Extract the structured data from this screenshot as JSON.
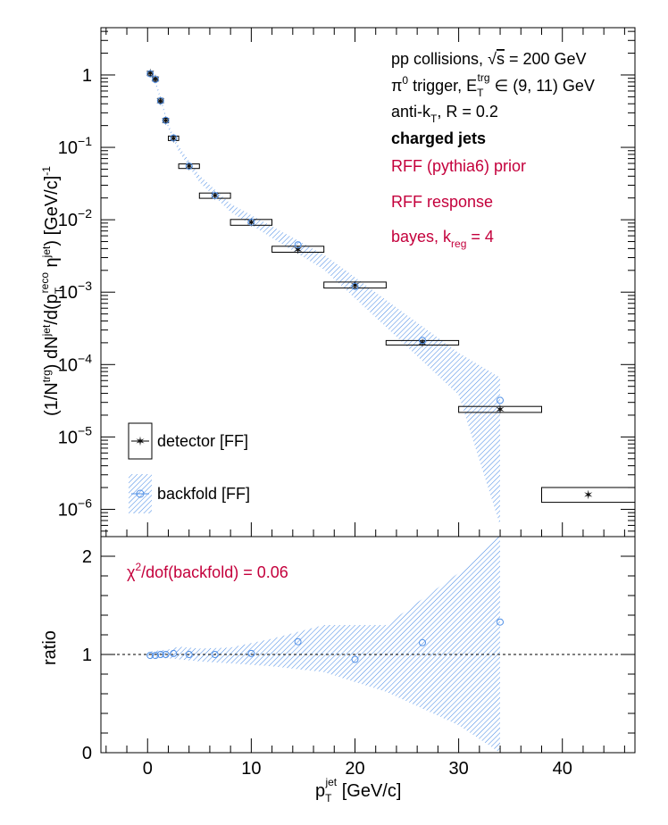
{
  "chart_data": [
    {
      "type": "scatter",
      "panel": "main",
      "yscale": "log",
      "xlim": [
        -4.5,
        47
      ],
      "ylim": [
        4.2e-07,
        4.5
      ],
      "ylabel": {
        "a": "(1/N",
        "b": "trg",
        "c": ") dN",
        "d": "jet",
        "e": "/d(p",
        "f": "T",
        "g": "reco",
        "h": " η",
        "i": "jet",
        "j": ") [GeV/c]",
        "k": "-1"
      },
      "yticks": [
        {
          "v": 1,
          "label": "1"
        },
        {
          "v": 0.1,
          "label": "10",
          "exp": "−1"
        },
        {
          "v": 0.01,
          "label": "10",
          "exp": "−2"
        },
        {
          "v": 0.001,
          "label": "10",
          "exp": "−3"
        },
        {
          "v": 0.0001,
          "label": "10",
          "exp": "−4"
        },
        {
          "v": 1e-05,
          "label": "10",
          "exp": "−5"
        },
        {
          "v": 1e-06,
          "label": "10",
          "exp": "−6"
        }
      ],
      "series": [
        {
          "name": "detector [FF]",
          "points": [
            {
              "x": 0.25,
              "y": 1.05,
              "xlo": 0.0,
              "xhi": 0.5,
              "ylo": 1.01,
              "yhi": 1.09
            },
            {
              "x": 0.75,
              "y": 0.88,
              "xlo": 0.5,
              "xhi": 1.0,
              "ylo": 0.85,
              "yhi": 0.91
            },
            {
              "x": 1.25,
              "y": 0.44,
              "xlo": 1.0,
              "xhi": 1.5,
              "ylo": 0.43,
              "yhi": 0.455
            },
            {
              "x": 1.75,
              "y": 0.235,
              "xlo": 1.5,
              "xhi": 2.0,
              "ylo": 0.228,
              "yhi": 0.242
            },
            {
              "x": 2.5,
              "y": 0.133,
              "xlo": 2.0,
              "xhi": 3.0,
              "ylo": 0.128,
              "yhi": 0.139
            },
            {
              "x": 4.0,
              "y": 0.055,
              "xlo": 3.0,
              "xhi": 5.0,
              "ylo": 0.051,
              "yhi": 0.059
            },
            {
              "x": 6.5,
              "y": 0.0215,
              "xlo": 5.0,
              "xhi": 8.0,
              "ylo": 0.0198,
              "yhi": 0.0234
            },
            {
              "x": 10.0,
              "y": 0.0092,
              "xlo": 8.0,
              "xhi": 12.0,
              "ylo": 0.0084,
              "yhi": 0.0101
            },
            {
              "x": 14.5,
              "y": 0.0039,
              "xlo": 12.0,
              "xhi": 17.0,
              "ylo": 0.00355,
              "yhi": 0.0043
            },
            {
              "x": 20.0,
              "y": 0.00125,
              "xlo": 17.0,
              "xhi": 23.0,
              "ylo": 0.00114,
              "yhi": 0.00138
            },
            {
              "x": 26.5,
              "y": 0.0002,
              "xlo": 23.0,
              "xhi": 30.0,
              "ylo": 0.000189,
              "yhi": 0.000212
            },
            {
              "x": 34.0,
              "y": 2.4e-05,
              "xlo": 30.0,
              "xhi": 38.0,
              "ylo": 2.18e-05,
              "yhi": 2.64e-05
            },
            {
              "x": 42.5,
              "y": 1.6e-06,
              "xlo": 38.0,
              "xhi": 47.0,
              "ylo": 1.25e-06,
              "yhi": 2e-06
            }
          ]
        },
        {
          "name": "backfold [FF]",
          "points": [
            {
              "x": 0.25,
              "y": 1.04
            },
            {
              "x": 0.75,
              "y": 0.87
            },
            {
              "x": 1.25,
              "y": 0.44
            },
            {
              "x": 1.75,
              "y": 0.236
            },
            {
              "x": 2.5,
              "y": 0.135
            },
            {
              "x": 4.0,
              "y": 0.055
            },
            {
              "x": 6.5,
              "y": 0.0216
            },
            {
              "x": 10.0,
              "y": 0.0093
            },
            {
              "x": 14.5,
              "y": 0.0045
            },
            {
              "x": 20.0,
              "y": 0.0012
            },
            {
              "x": 26.5,
              "y": 0.000215
            },
            {
              "x": 34.0,
              "y": 3.2e-05
            }
          ],
          "band": [
            {
              "x": 0.0,
              "lo": 1.05,
              "hi": 1.15
            },
            {
              "x": 0.5,
              "lo": 0.93,
              "hi": 1.02
            },
            {
              "x": 1.0,
              "lo": 0.58,
              "hi": 0.66
            },
            {
              "x": 1.5,
              "lo": 0.33,
              "hi": 0.38
            },
            {
              "x": 2.0,
              "lo": 0.18,
              "hi": 0.205
            },
            {
              "x": 3.0,
              "lo": 0.088,
              "hi": 0.104
            },
            {
              "x": 5.0,
              "lo": 0.033,
              "hi": 0.041
            },
            {
              "x": 8.0,
              "lo": 0.0128,
              "hi": 0.0166
            },
            {
              "x": 12.0,
              "lo": 0.0056,
              "hi": 0.0081
            },
            {
              "x": 17.0,
              "lo": 0.00205,
              "hi": 0.0033
            },
            {
              "x": 23.0,
              "lo": 0.00033,
              "hi": 0.00078
            },
            {
              "x": 30.0,
              "lo": 3.8e-05,
              "hi": 0.000145
            },
            {
              "x": 34.0,
              "lo": 6e-07,
              "hi": 6.6e-05
            }
          ]
        }
      ],
      "annotations": [
        {
          "kind": "sqrts",
          "a": "pp collisions, ",
          "b": "s",
          "c": " = 200 GeV"
        },
        {
          "kind": "trigger",
          "a": "π",
          "b": "0",
          "c": " trigger, E",
          "d": "T",
          "e": "trg",
          "f": " ∈ (9, 11) GeV"
        },
        {
          "kind": "algo",
          "a": "anti-k",
          "b": "T",
          "c": ", R = 0.2"
        },
        {
          "kind": "bold",
          "a": "charged jets"
        },
        {
          "kind": "red",
          "a": "RFF (pythia6) prior"
        },
        {
          "kind": "red",
          "a": "RFF response"
        },
        {
          "kind": "bayes",
          "a": "bayes, k",
          "b": "reg",
          "c": " = 4"
        }
      ],
      "legend": {
        "placement": "bottom-left",
        "entries": [
          "detector [FF]",
          "backfold [FF]"
        ]
      }
    },
    {
      "type": "scatter",
      "panel": "ratio",
      "xlim": [
        -4.5,
        47
      ],
      "ylim": [
        0,
        2.2
      ],
      "xlabel": {
        "a": "p",
        "b": "T",
        "c": "jet",
        "d": " [GeV/c]"
      },
      "xticks": [
        {
          "v": 0,
          "label": "0"
        },
        {
          "v": 10,
          "label": "10"
        },
        {
          "v": 20,
          "label": "20"
        },
        {
          "v": 30,
          "label": "30"
        },
        {
          "v": 40,
          "label": "40"
        }
      ],
      "ylabel": "ratio",
      "yticks": [
        {
          "v": 0,
          "label": "0"
        },
        {
          "v": 1,
          "label": "1"
        },
        {
          "v": 2,
          "label": "2"
        }
      ],
      "reference_line": 1,
      "series": [
        {
          "name": "backfold [FF]",
          "points": [
            {
              "x": 0.25,
              "y": 0.99
            },
            {
              "x": 0.75,
              "y": 0.99
            },
            {
              "x": 1.25,
              "y": 1.0
            },
            {
              "x": 1.75,
              "y": 1.0
            },
            {
              "x": 2.5,
              "y": 1.01
            },
            {
              "x": 4.0,
              "y": 1.0
            },
            {
              "x": 6.5,
              "y": 1.0
            },
            {
              "x": 10.0,
              "y": 1.01
            },
            {
              "x": 14.5,
              "y": 1.13
            },
            {
              "x": 20.0,
              "y": 0.95
            },
            {
              "x": 26.5,
              "y": 1.12
            },
            {
              "x": 34.0,
              "y": 1.33
            }
          ],
          "band": [
            {
              "x": 0.0,
              "lo": 0.97,
              "hi": 1.03
            },
            {
              "x": 2.0,
              "lo": 0.96,
              "hi": 1.05
            },
            {
              "x": 3.0,
              "lo": 0.95,
              "hi": 1.08
            },
            {
              "x": 5.0,
              "lo": 0.93,
              "hi": 1.06
            },
            {
              "x": 8.0,
              "lo": 0.91,
              "hi": 1.07
            },
            {
              "x": 12.0,
              "lo": 0.88,
              "hi": 1.16
            },
            {
              "x": 17.0,
              "lo": 0.82,
              "hi": 1.3
            },
            {
              "x": 23.0,
              "lo": 0.62,
              "hi": 1.3
            },
            {
              "x": 30.0,
              "lo": 0.28,
              "hi": 1.83
            },
            {
              "x": 34.0,
              "lo": 0.0,
              "hi": 2.22
            }
          ]
        }
      ],
      "annotation": {
        "a": "χ",
        "b": "2",
        "c": "/dof(backfold) = 0.06"
      }
    }
  ]
}
